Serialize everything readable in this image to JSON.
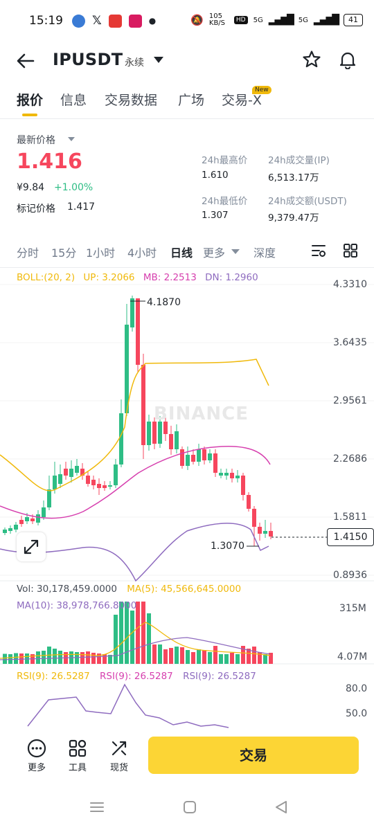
{
  "status": {
    "time": "15:19",
    "speed": "105 KB/S",
    "net1": "5G",
    "net2": "5G",
    "battery": "41"
  },
  "header": {
    "symbol": "IPUSDT",
    "contract_type": "永续"
  },
  "tabs": [
    {
      "label": "报价",
      "active": true
    },
    {
      "label": "信息"
    },
    {
      "label": "交易数据"
    },
    {
      "label": "广场"
    },
    {
      "label": "交易-X",
      "badge": "New"
    }
  ],
  "ticker": {
    "last_price_label": "最新价格",
    "last_price": "1.416",
    "cny_price": "¥9.84",
    "change_pct": "+1.00%",
    "mark_label": "标记价格",
    "mark_price": "1.417",
    "high_label": "24h最高价",
    "high": "1.610",
    "vol_label": "24h成交量(IP)",
    "vol": "6,513.17万",
    "low_label": "24h最低价",
    "low": "1.307",
    "turnover_label": "24h成交额(USDT)",
    "turnover": "9,379.47万"
  },
  "intervals": [
    "分时",
    "15分",
    "1小时",
    "4小时",
    "日线",
    "更多",
    "深度"
  ],
  "active_interval": "日线",
  "chart": {
    "boll_line": "BOLL:(20, 2)",
    "up": "UP: 3.2066",
    "mb": "MB: 2.2513",
    "dn": "DN: 1.2960",
    "watermark": "BINANCE",
    "price_axis": [
      "4.3310",
      "3.6435",
      "2.9561",
      "2.2686",
      "1.5811",
      "0.8936"
    ],
    "high_marker": "4.1870",
    "low_marker": "1.3070",
    "current_price_tag": "1.4150",
    "vol_line": "Vol: 30,178,459.0000",
    "vol_ma5": "MA(5): 45,566,645.0000",
    "vol_ma10": "MA(10): 38,978,766.8000",
    "vol_axis": [
      "315M",
      "4.07M"
    ],
    "rsi_1": "RSI(9): 26.5287",
    "rsi_2": "RSI(9): 26.5287",
    "rsi_3": "RSI(9): 26.5287",
    "rsi_axis": [
      "80.0",
      "50.0"
    ],
    "colors": {
      "up": "#2ebd85",
      "down": "#f6465d",
      "boll_up": "#f0b90b",
      "boll_mb": "#d63fae",
      "boll_dn": "#8e6bbf"
    }
  },
  "bottom": {
    "more": "更多",
    "tools": "工具",
    "spot": "现货",
    "trade": "交易"
  }
}
